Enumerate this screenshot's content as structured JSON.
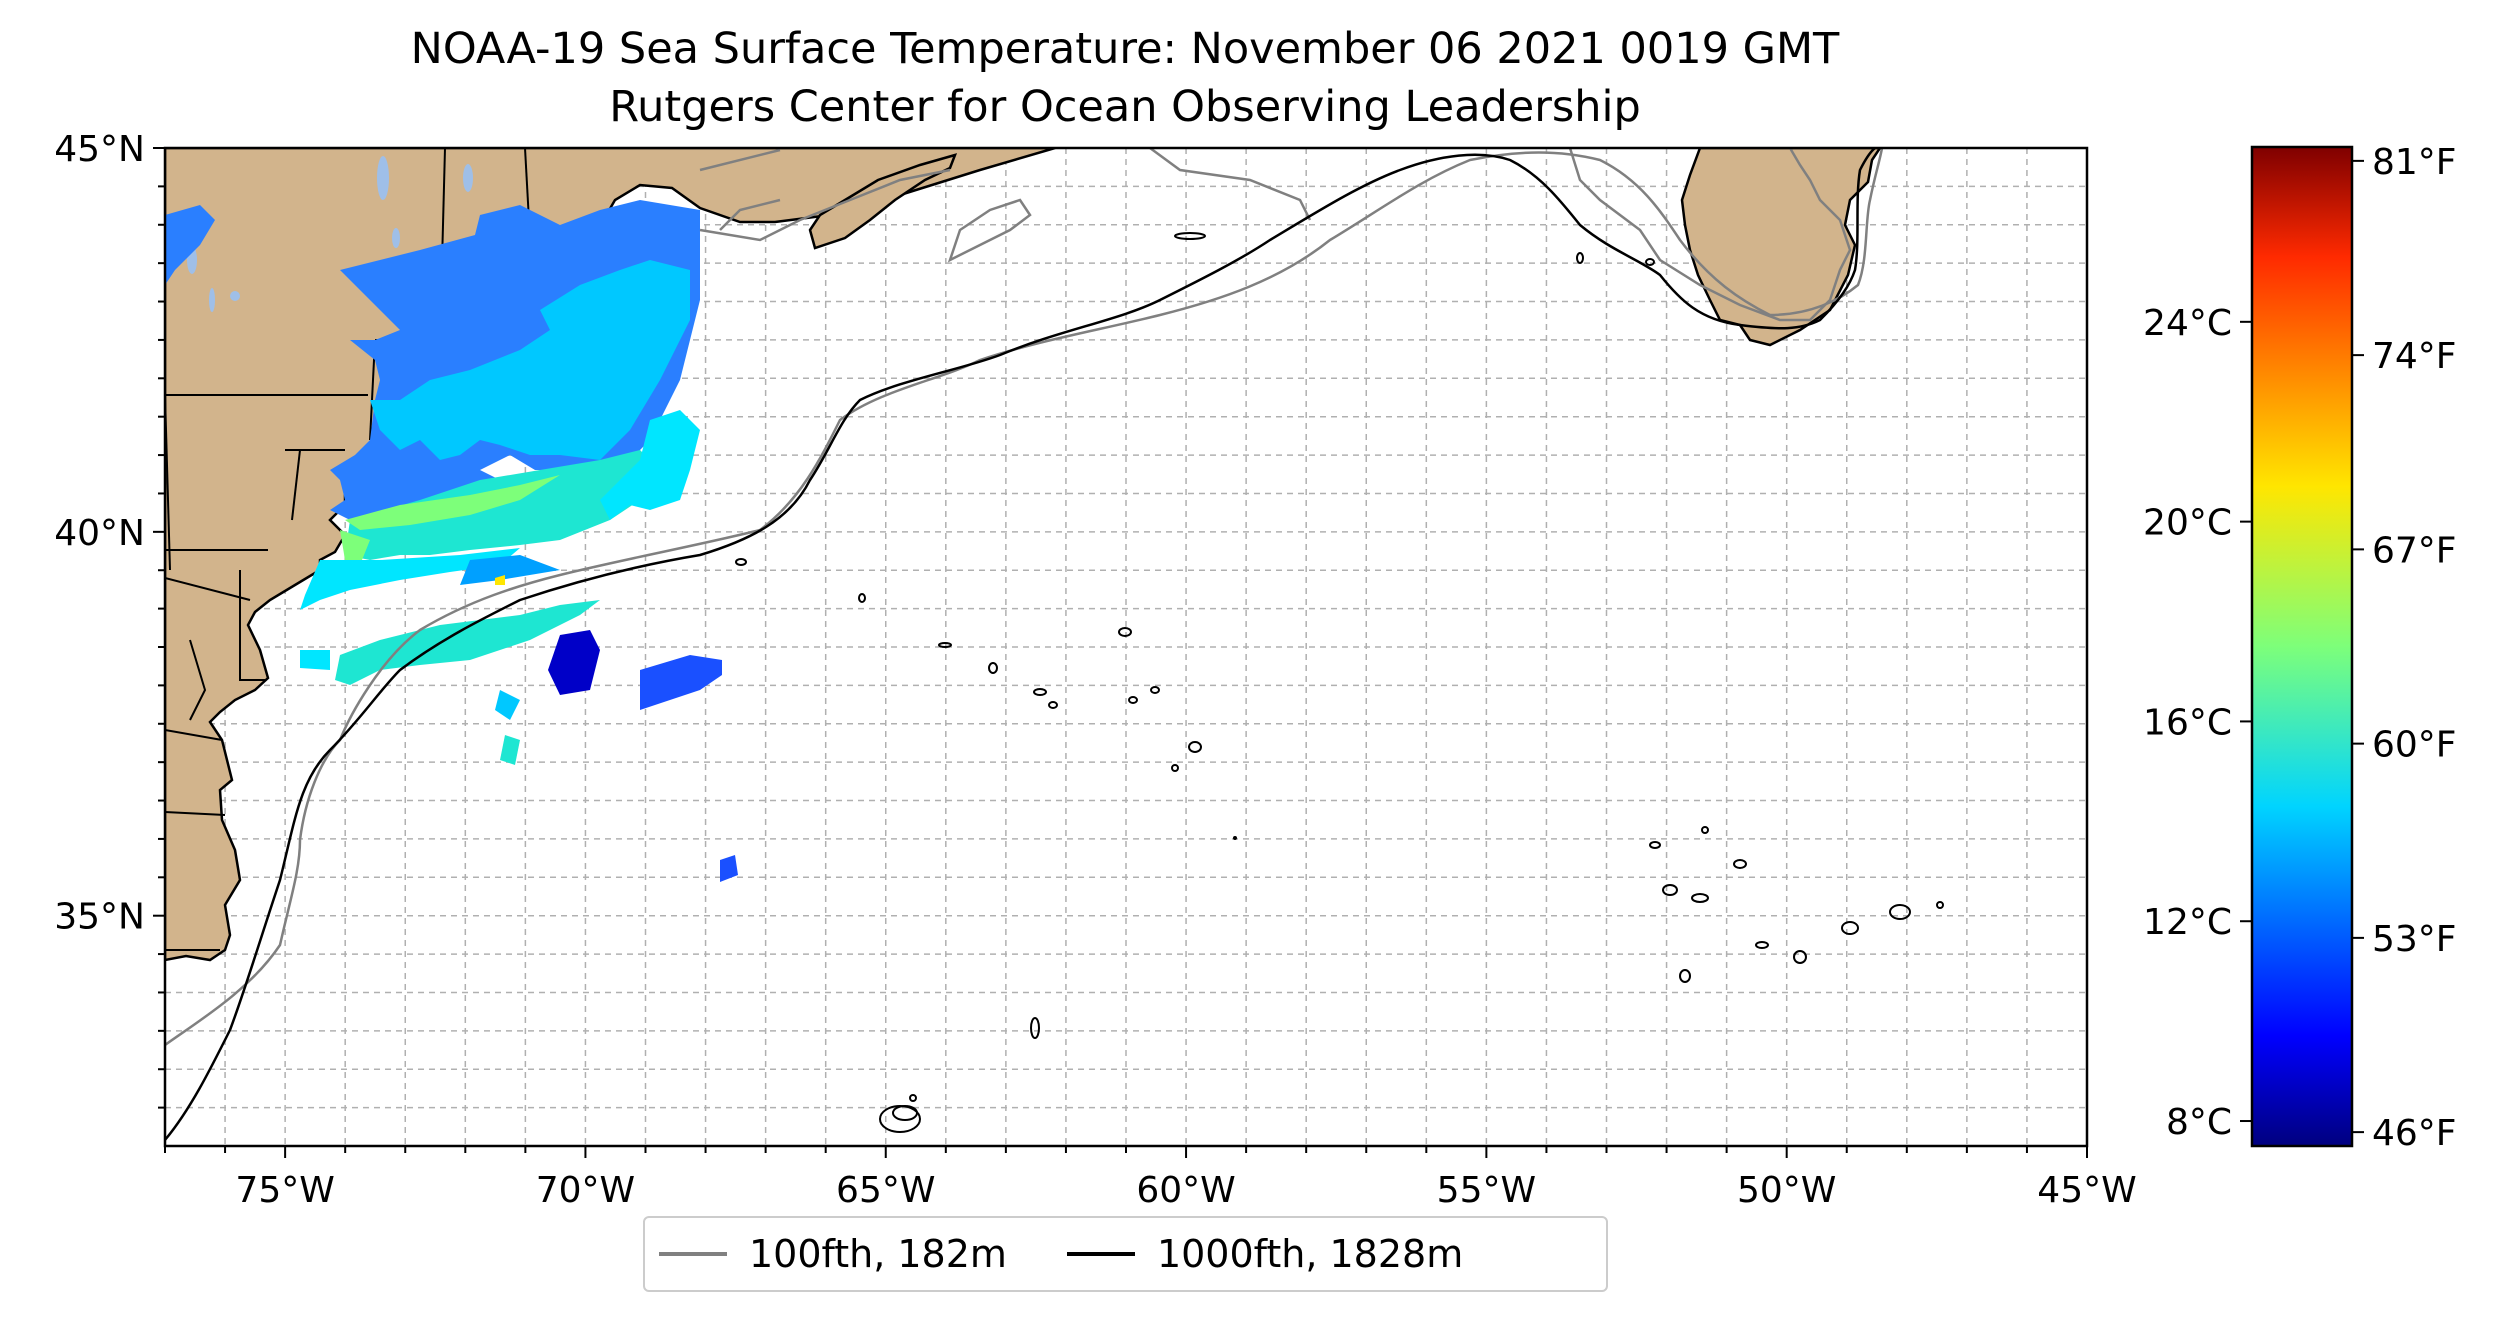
{
  "title": {
    "line1": "NOAA-19 Sea Surface Temperature: November 06 2021 0019 GMT",
    "line2": "Rutgers Center for Ocean Observing Leadership"
  },
  "map": {
    "lon_range": [
      -77,
      -45
    ],
    "lat_range": [
      32,
      45
    ],
    "lon_ticks": [
      -75,
      -70,
      -65,
      -60,
      -55,
      -50,
      -45
    ],
    "lon_tick_labels": [
      "75°W",
      "70°W",
      "65°W",
      "60°W",
      "55°W",
      "50°W",
      "45°W"
    ],
    "lat_ticks": [
      35,
      40,
      45
    ],
    "lat_tick_labels": [
      "35°N",
      "40°N",
      "45°N"
    ],
    "gridlines": true,
    "grid_step_deg": 1,
    "colors": {
      "land": "#d2b48c",
      "lakes": "#9fbfe8",
      "contour_100": "#808080",
      "contour_1000": "#000000"
    }
  },
  "colorbar": {
    "colormap": "jet",
    "celsius_range": [
      7.5,
      27.5
    ],
    "celsius_ticks": [
      8,
      12,
      16,
      20,
      24
    ],
    "celsius_labels": [
      "8°C",
      "12°C",
      "16°C",
      "20°C",
      "24°C"
    ],
    "fahrenheit_ticks": [
      46,
      53,
      60,
      67,
      74,
      81
    ],
    "fahrenheit_labels": [
      "46°F",
      "53°F",
      "60°F",
      "67°F",
      "74°F",
      "81°F"
    ]
  },
  "legend": {
    "items": [
      {
        "label": "100fth, 182m",
        "color": "#808080"
      },
      {
        "label": "1000fth, 1828m",
        "color": "#000000"
      }
    ],
    "placement": "bottom-center"
  }
}
